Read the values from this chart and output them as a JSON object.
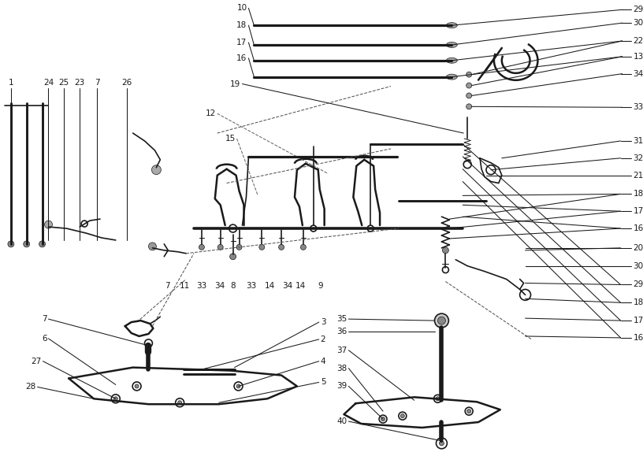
{
  "bg_color": "#ffffff",
  "line_color": "#1a1a1a",
  "lw_thick": 1.8,
  "lw_med": 1.2,
  "lw_thin": 0.75,
  "fs": 7.5,
  "right_labels": [
    [
      "29",
      10
    ],
    [
      "30",
      27
    ],
    [
      "22",
      50
    ],
    [
      "13",
      70
    ],
    [
      "34",
      92
    ],
    [
      "33",
      135
    ],
    [
      "31",
      178
    ],
    [
      "32",
      200
    ],
    [
      "21",
      222
    ],
    [
      "18",
      246
    ],
    [
      "17",
      268
    ],
    [
      "16",
      290
    ],
    [
      "20",
      315
    ],
    [
      "30",
      338
    ],
    [
      "29",
      362
    ],
    [
      "18",
      385
    ],
    [
      "17",
      408
    ],
    [
      "16",
      430
    ]
  ],
  "top_labels": [
    [
      "10",
      318,
      8
    ],
    [
      "18",
      318,
      30
    ],
    [
      "17",
      318,
      52
    ],
    [
      "16",
      318,
      72
    ],
    [
      "19",
      308,
      102
    ],
    [
      "12",
      276,
      140
    ],
    [
      "15",
      301,
      172
    ]
  ],
  "left_col_labels": [
    [
      "1",
      14,
      108
    ],
    [
      "24",
      62,
      108
    ],
    [
      "25",
      82,
      108
    ],
    [
      "23",
      102,
      108
    ],
    [
      "7",
      124,
      108
    ],
    [
      "26",
      162,
      108
    ]
  ],
  "bottom_left_labels": [
    [
      "7",
      62,
      406
    ],
    [
      "6",
      62,
      431
    ],
    [
      "27",
      55,
      460
    ],
    [
      "28",
      48,
      493
    ]
  ],
  "bottom_center_labels": [
    [
      "7",
      214,
      358
    ],
    [
      "11",
      236,
      358
    ],
    [
      "33",
      258,
      358
    ],
    [
      "34",
      281,
      358
    ],
    [
      "8",
      298,
      358
    ],
    [
      "33",
      321,
      358
    ],
    [
      "14",
      345,
      358
    ],
    [
      "34",
      368,
      358
    ],
    [
      "14",
      385,
      358
    ],
    [
      "9",
      410,
      358
    ]
  ],
  "bottom_left_right_labels": [
    [
      "3",
      408,
      410
    ],
    [
      "2",
      408,
      432
    ],
    [
      "4",
      408,
      460
    ],
    [
      "5",
      408,
      487
    ]
  ],
  "bottom_right_labels": [
    [
      "35",
      446,
      406
    ],
    [
      "36",
      446,
      422
    ],
    [
      "37",
      446,
      446
    ],
    [
      "38",
      446,
      469
    ],
    [
      "39",
      446,
      492
    ],
    [
      "40",
      446,
      537
    ]
  ]
}
